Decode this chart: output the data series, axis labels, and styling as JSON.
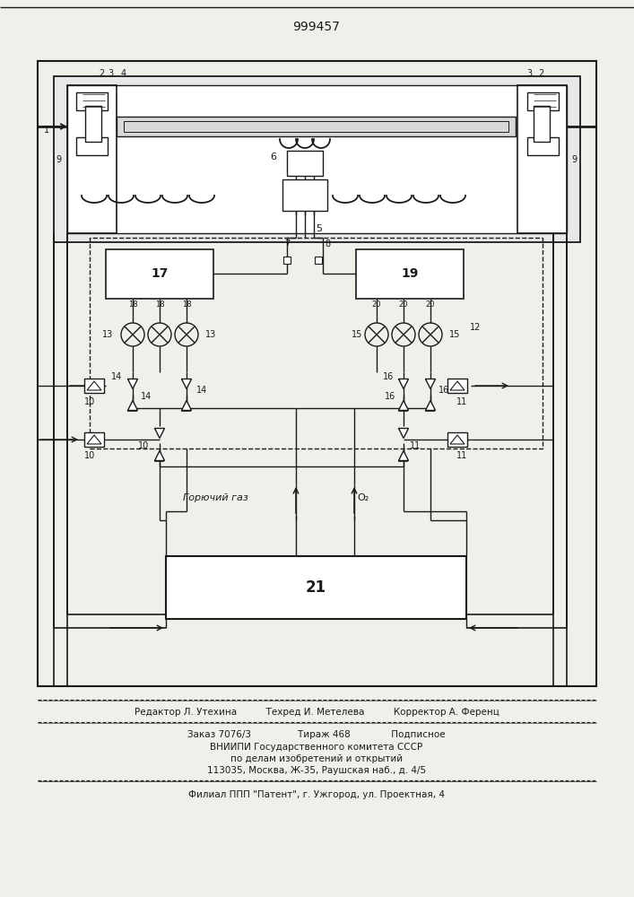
{
  "title": "999457",
  "bg_color": "#f0f0ea",
  "footer_lines": [
    "Редактор Л. Утехина          Техред И. Метелева          Корректор А. Ференц",
    "Заказ 7076/3                Тираж 468              Подписное",
    "ВНИИПИ Государственного комитета СССР",
    "по делам изобретений и открытий",
    "113035, Москва, Ж-35, Раушская наб., д. 4/5",
    "Филиал ППП \"Патент\", г. Ужгород, ул. Проектная, 4"
  ]
}
